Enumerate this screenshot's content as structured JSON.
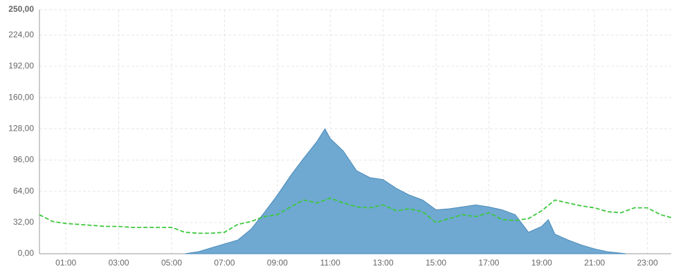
{
  "chart_data": {
    "type": "area-line",
    "xlim": [
      0,
      23.9
    ],
    "xticks": [
      {
        "value": 1,
        "label": "01:00"
      },
      {
        "value": 3,
        "label": "03:00"
      },
      {
        "value": 5,
        "label": "05:00"
      },
      {
        "value": 7,
        "label": "07:00"
      },
      {
        "value": 9,
        "label": "09:00"
      },
      {
        "value": 11,
        "label": "11:00"
      },
      {
        "value": 13,
        "label": "13:00"
      },
      {
        "value": 15,
        "label": "15:00"
      },
      {
        "value": 17,
        "label": "17:00"
      },
      {
        "value": 19,
        "label": "19:00"
      },
      {
        "value": 21,
        "label": "21:00"
      },
      {
        "value": 23,
        "label": "23:00"
      }
    ],
    "ylim": [
      0,
      250
    ],
    "yticks": [
      {
        "value": 0,
        "label": "0,00"
      },
      {
        "value": 32,
        "label": "32,00"
      },
      {
        "value": 64,
        "label": "64,00"
      },
      {
        "value": 96,
        "label": "96,00"
      },
      {
        "value": 128,
        "label": "128,00"
      },
      {
        "value": 160,
        "label": "160,00"
      },
      {
        "value": 192,
        "label": "192,00"
      },
      {
        "value": 224,
        "label": "224,00"
      },
      {
        "value": 250,
        "label": "250,00"
      }
    ],
    "grid": true,
    "series": [
      {
        "kind": "area",
        "color": "#6fa8d1",
        "x": [
          5.5,
          6,
          6.5,
          7,
          7.5,
          8,
          8.5,
          9,
          9.5,
          10,
          10.5,
          10.8,
          11,
          11.5,
          12,
          12.5,
          13,
          13.5,
          14,
          14.5,
          15,
          15.5,
          16,
          16.5,
          17,
          17.5,
          18,
          18.5,
          19,
          19.25,
          19.5,
          20,
          20.5,
          21,
          21.5,
          22.2
        ],
        "values": [
          0,
          2,
          6,
          10,
          14,
          25,
          42,
          60,
          80,
          98,
          115,
          128,
          118,
          105,
          85,
          78,
          76,
          67,
          60,
          55,
          45,
          46,
          48,
          50,
          48,
          45,
          40,
          22,
          28,
          35,
          20,
          14,
          9,
          5,
          2,
          0
        ]
      },
      {
        "kind": "line",
        "color": "#3cc83c",
        "x": [
          0,
          0.5,
          1,
          1.5,
          2,
          2.5,
          3,
          3.5,
          4,
          4.5,
          5,
          5.5,
          6,
          6.5,
          7,
          7.5,
          8,
          8.5,
          9,
          9.5,
          10,
          10.5,
          11,
          11.5,
          12,
          12.5,
          13,
          13.5,
          14,
          14.5,
          15,
          15.5,
          16,
          16.5,
          17,
          17.5,
          18,
          18.5,
          19,
          19.5,
          20,
          20.5,
          21,
          21.5,
          22,
          22.5,
          23,
          23.5,
          23.9
        ],
        "values": [
          40,
          33,
          31,
          30,
          29,
          28,
          28,
          27,
          27,
          27,
          27,
          22,
          21,
          21,
          22,
          30,
          33,
          38,
          40,
          48,
          55,
          52,
          57,
          52,
          48,
          47,
          50,
          44,
          46,
          43,
          32,
          36,
          40,
          38,
          42,
          35,
          34,
          36,
          44,
          55,
          52,
          49,
          47,
          43,
          42,
          47,
          47,
          40,
          37
        ]
      }
    ]
  }
}
